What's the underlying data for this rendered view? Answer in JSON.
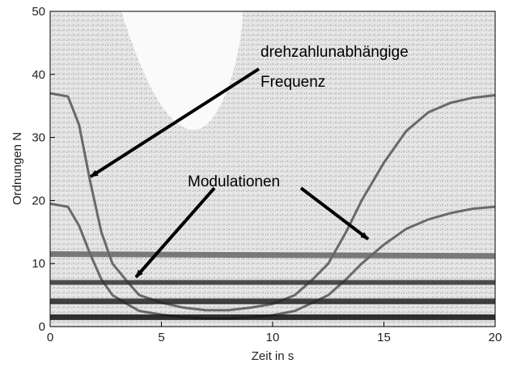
{
  "chart_data": {
    "type": "line",
    "xlabel": "Zeit in s",
    "ylabel": "Ordnungen N",
    "annotations": [
      "drehzahlunabhängige",
      "Frequenz",
      "Modulationen"
    ],
    "xlim": [
      0,
      20
    ],
    "ylim": [
      0,
      50
    ],
    "xticks": [
      0,
      5,
      10,
      15,
      20
    ],
    "yticks": [
      0,
      10,
      20,
      30,
      40,
      50
    ],
    "series": [
      {
        "color": "#555555",
        "x": [
          0,
          0.8,
          1.3,
          1.8,
          2.3,
          2.8,
          3.5,
          4,
          5,
          6,
          7,
          8,
          9,
          10,
          11,
          11.8,
          12.5,
          13.3,
          14,
          15,
          16,
          17,
          18,
          19,
          20
        ],
        "values": [
          37,
          36.5,
          32,
          23,
          15,
          10,
          7,
          5,
          3.8,
          3,
          2.6,
          2.6,
          3,
          3.6,
          5,
          7.5,
          10,
          15,
          20,
          26,
          31,
          34,
          35.5,
          36.3,
          36.7
        ]
      },
      {
        "color": "#555555",
        "x": [
          0,
          0.8,
          1.3,
          1.8,
          2.3,
          2.8,
          3.5,
          4,
          5,
          6,
          7,
          8,
          9,
          10,
          11,
          11.8,
          12.5,
          13.3,
          14,
          15,
          16,
          17,
          18,
          19,
          20
        ],
        "values": [
          19.5,
          19,
          16,
          11.5,
          7.5,
          5,
          3.5,
          2.5,
          1.9,
          1.5,
          1.3,
          1.3,
          1.5,
          1.8,
          2.5,
          3.8,
          5,
          7.5,
          10,
          13,
          15.5,
          17,
          18,
          18.7,
          19
        ]
      },
      {
        "color": "#666666",
        "x": [
          0,
          20
        ],
        "values": [
          11.5,
          11.2
        ]
      },
      {
        "color": "#333333",
        "x": [
          0,
          20
        ],
        "values": [
          7,
          7
        ]
      },
      {
        "color": "#222222",
        "x": [
          0,
          20
        ],
        "values": [
          4,
          4
        ]
      },
      {
        "color": "#111111",
        "x": [
          0,
          20
        ],
        "values": [
          1.5,
          1.5
        ]
      }
    ]
  }
}
